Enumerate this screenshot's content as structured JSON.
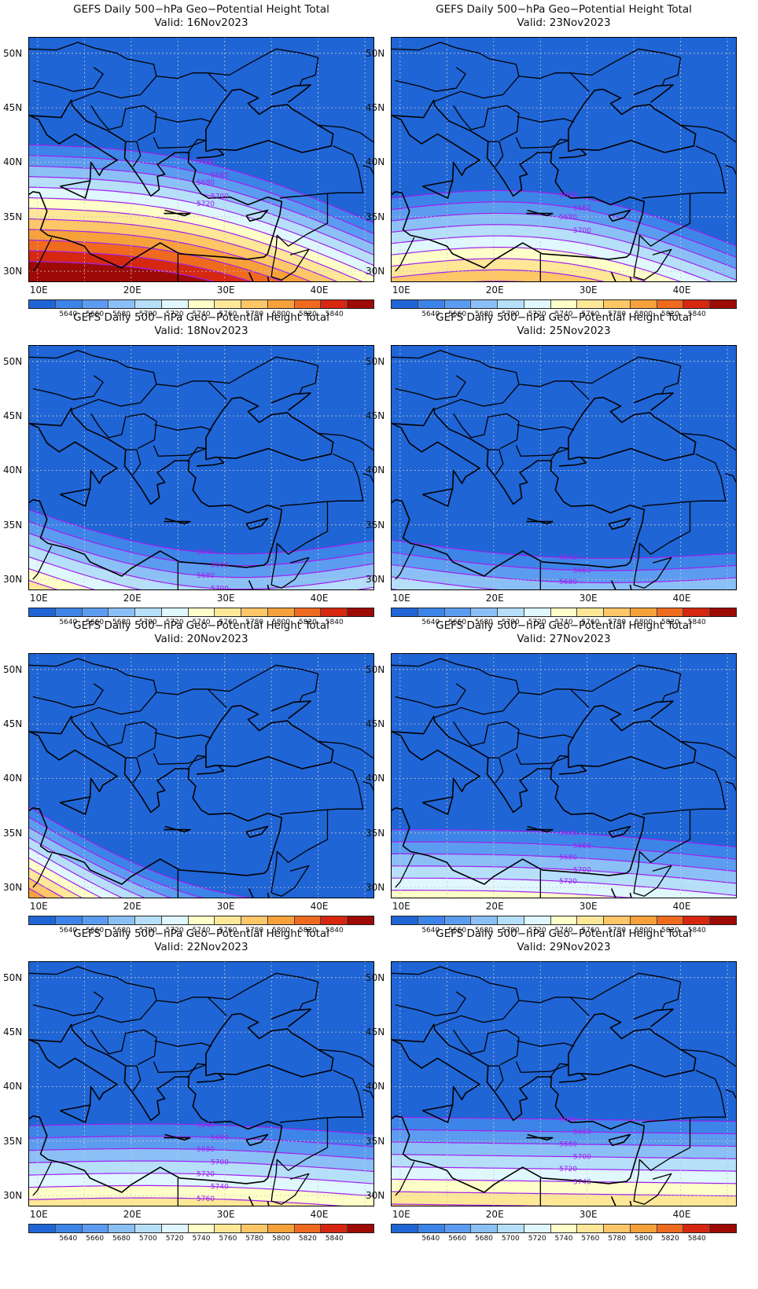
{
  "panels": [
    {
      "title": "GEFS Daily 500−hPa Geo−Potential Height Total",
      "valid": "Valid: 16Nov2023",
      "col": 0,
      "row": 0,
      "base": 38.0,
      "amp": 2.0,
      "tilt": 0.9,
      "shift": 0,
      "labels": [
        "5640",
        "5660",
        "5680",
        "5700",
        "5720"
      ]
    },
    {
      "title": "GEFS Daily 500−hPa Geo−Potential Height Total",
      "valid": "Valid: 23Nov2023",
      "col": 1,
      "row": 0,
      "base": 34.5,
      "amp": 2.5,
      "tilt": 0.55,
      "shift": 2,
      "labels": [
        "5640",
        "5660",
        "5680",
        "5700"
      ]
    },
    {
      "title": "GEFS Daily 500−hPa Geo−Potential Height Total",
      "valid": "Valid: 18Nov2023",
      "col": 0,
      "row": 1,
      "base": 35.0,
      "amp": -2.5,
      "tilt": 0.35,
      "shift": 1,
      "labels": [
        "5640",
        "5660",
        "5680",
        "5700",
        "5720",
        "5740",
        "5760",
        "5780"
      ]
    },
    {
      "title": "GEFS Daily 500−hPa Geo−Potential Height Total",
      "valid": "Valid: 25Nov2023",
      "col": 1,
      "row": 1,
      "base": 33.0,
      "amp": -1.0,
      "tilt": 0.15,
      "shift": 3,
      "labels": [
        "5640",
        "5660",
        "5680"
      ]
    },
    {
      "title": "GEFS Daily 500−hPa Geo−Potential Height Total",
      "valid": "Valid: 20Nov2023",
      "col": 0,
      "row": 2,
      "base": 33.0,
      "amp": -3.0,
      "tilt": 1.1,
      "shift": 2,
      "labels": []
    },
    {
      "title": "GEFS Daily 500−hPa Geo−Potential Height Total",
      "valid": "Valid: 27Nov2023",
      "col": 1,
      "row": 2,
      "base": 34.5,
      "amp": 0.5,
      "tilt": 0.2,
      "shift": 3,
      "labels": [
        "5640",
        "5660",
        "5680",
        "5700",
        "5720"
      ]
    },
    {
      "title": "GEFS Daily 500−hPa Geo−Potential Height Total",
      "valid": "Valid: 22Nov2023",
      "col": 0,
      "row": 3,
      "base": 36.0,
      "amp": 0.5,
      "tilt": 0.1,
      "shift": 3,
      "labels": [
        "5640",
        "5660",
        "5680",
        "5700",
        "5720",
        "5740",
        "5760"
      ]
    },
    {
      "title": "GEFS Daily 500−hPa Geo−Potential Height Total",
      "valid": "Valid: 29Nov2023",
      "col": 1,
      "row": 3,
      "base": 37.0,
      "amp": 0.0,
      "tilt": 0.05,
      "shift": 3,
      "labels": [
        "5640",
        "5660",
        "5680",
        "5700",
        "5720",
        "5740"
      ]
    }
  ],
  "axis": {
    "lon_ticks": [
      "10E",
      "20E",
      "30E",
      "40E"
    ],
    "lat_ticks": [
      "50N",
      "45N",
      "40N",
      "35N",
      "30N"
    ]
  },
  "colorbar": {
    "colors": [
      "#1f65d6",
      "#3d84e8",
      "#5c9cf0",
      "#8bc0f7",
      "#b6dffa",
      "#dff7fd",
      "#fefec8",
      "#fee897",
      "#fdc667",
      "#f7a13b",
      "#ef6a1f",
      "#d62710",
      "#9e0a05"
    ],
    "labels": [
      "5640",
      "5660",
      "5680",
      "5700",
      "5720",
      "5740",
      "5760",
      "5780",
      "5800",
      "5820",
      "5840"
    ]
  },
  "contour_color": "#a020f0"
}
